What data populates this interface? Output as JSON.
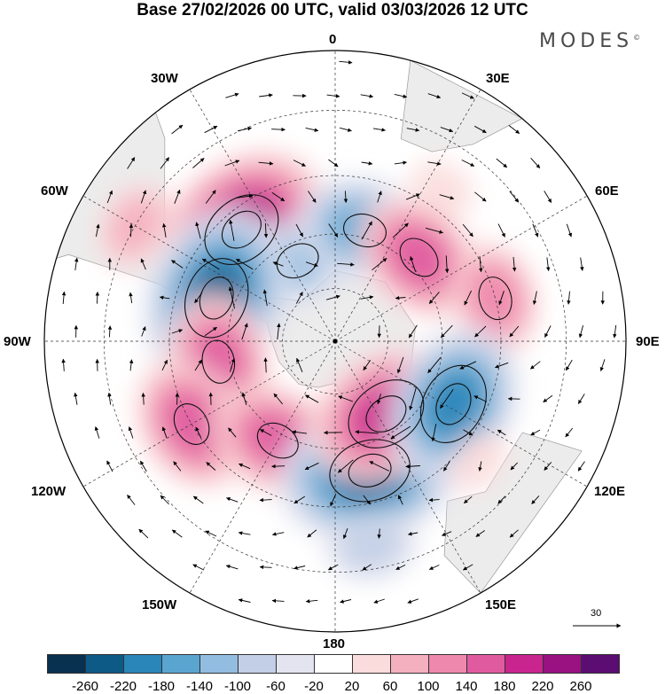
{
  "title": "Base 27/02/2026 00 UTC, valid 03/03/2026 12 UTC",
  "brand": "MODES",
  "brand_mark": "©",
  "longitude_labels": {
    "n": "0",
    "ne30": "30E",
    "ne60": "60E",
    "e": "90E",
    "se120": "120E",
    "se150": "150E",
    "s": "180",
    "sw150": "150W",
    "sw120": "120W",
    "w": "90W",
    "nw60": "60W",
    "nw30": "30W"
  },
  "reference_vector": {
    "label": "30"
  },
  "legend": {
    "colors": [
      "#08304f",
      "#0d5a86",
      "#2a85b8",
      "#5aa5cf",
      "#93bde0",
      "#c3cfe6",
      "#e4e4f0",
      "#ffffff",
      "#fbdcdc",
      "#f5b0bf",
      "#ee88ad",
      "#e05a9f",
      "#c8258e",
      "#9a1182",
      "#5c0d72"
    ],
    "ticks": [
      "-260",
      "-220",
      "-180",
      "-140",
      "-100",
      "-60",
      "-20",
      "20",
      "60",
      "100",
      "140",
      "180",
      "220",
      "260"
    ]
  },
  "map": {
    "projection": "polar stereographic, south pole centered",
    "anomalies": [
      {
        "lon": -40,
        "lat": -50,
        "value": 230
      },
      {
        "lon": -25,
        "lat": -65,
        "value": -110
      },
      {
        "lon": 15,
        "lat": -58,
        "value": -160
      },
      {
        "lon": 45,
        "lat": -57,
        "value": 170
      },
      {
        "lon": 75,
        "lat": -45,
        "value": 110
      },
      {
        "lon": -70,
        "lat": -55,
        "value": -220
      },
      {
        "lon": -100,
        "lat": -57,
        "value": 170
      },
      {
        "lon": -120,
        "lat": -45,
        "value": 160
      },
      {
        "lon": -150,
        "lat": -58,
        "value": 140
      },
      {
        "lon": 165,
        "lat": -53,
        "value": -250
      },
      {
        "lon": 145,
        "lat": -65,
        "value": 200
      },
      {
        "lon": 118,
        "lat": -53,
        "value": -200
      },
      {
        "lon": 130,
        "lat": -40,
        "value": 40
      },
      {
        "lon": 35,
        "lat": -40,
        "value": 40
      },
      {
        "lon": -60,
        "lat": -30,
        "value": 60
      },
      {
        "lon": 170,
        "lat": -35,
        "value": -60
      }
    ],
    "circulation_centers": [
      {
        "lon": -40,
        "lat": -50,
        "sense": "clockwise"
      },
      {
        "lon": -70,
        "lat": -55,
        "sense": "counterclockwise"
      },
      {
        "lon": 165,
        "lat": -53,
        "sense": "counterclockwise"
      },
      {
        "lon": 118,
        "lat": -53,
        "sense": "counterclockwise"
      },
      {
        "lon": 145,
        "lat": -65,
        "sense": "clockwise"
      },
      {
        "lon": 45,
        "lat": -57,
        "sense": "clockwise"
      },
      {
        "lon": 15,
        "lat": -58,
        "sense": "counterclockwise"
      }
    ]
  }
}
